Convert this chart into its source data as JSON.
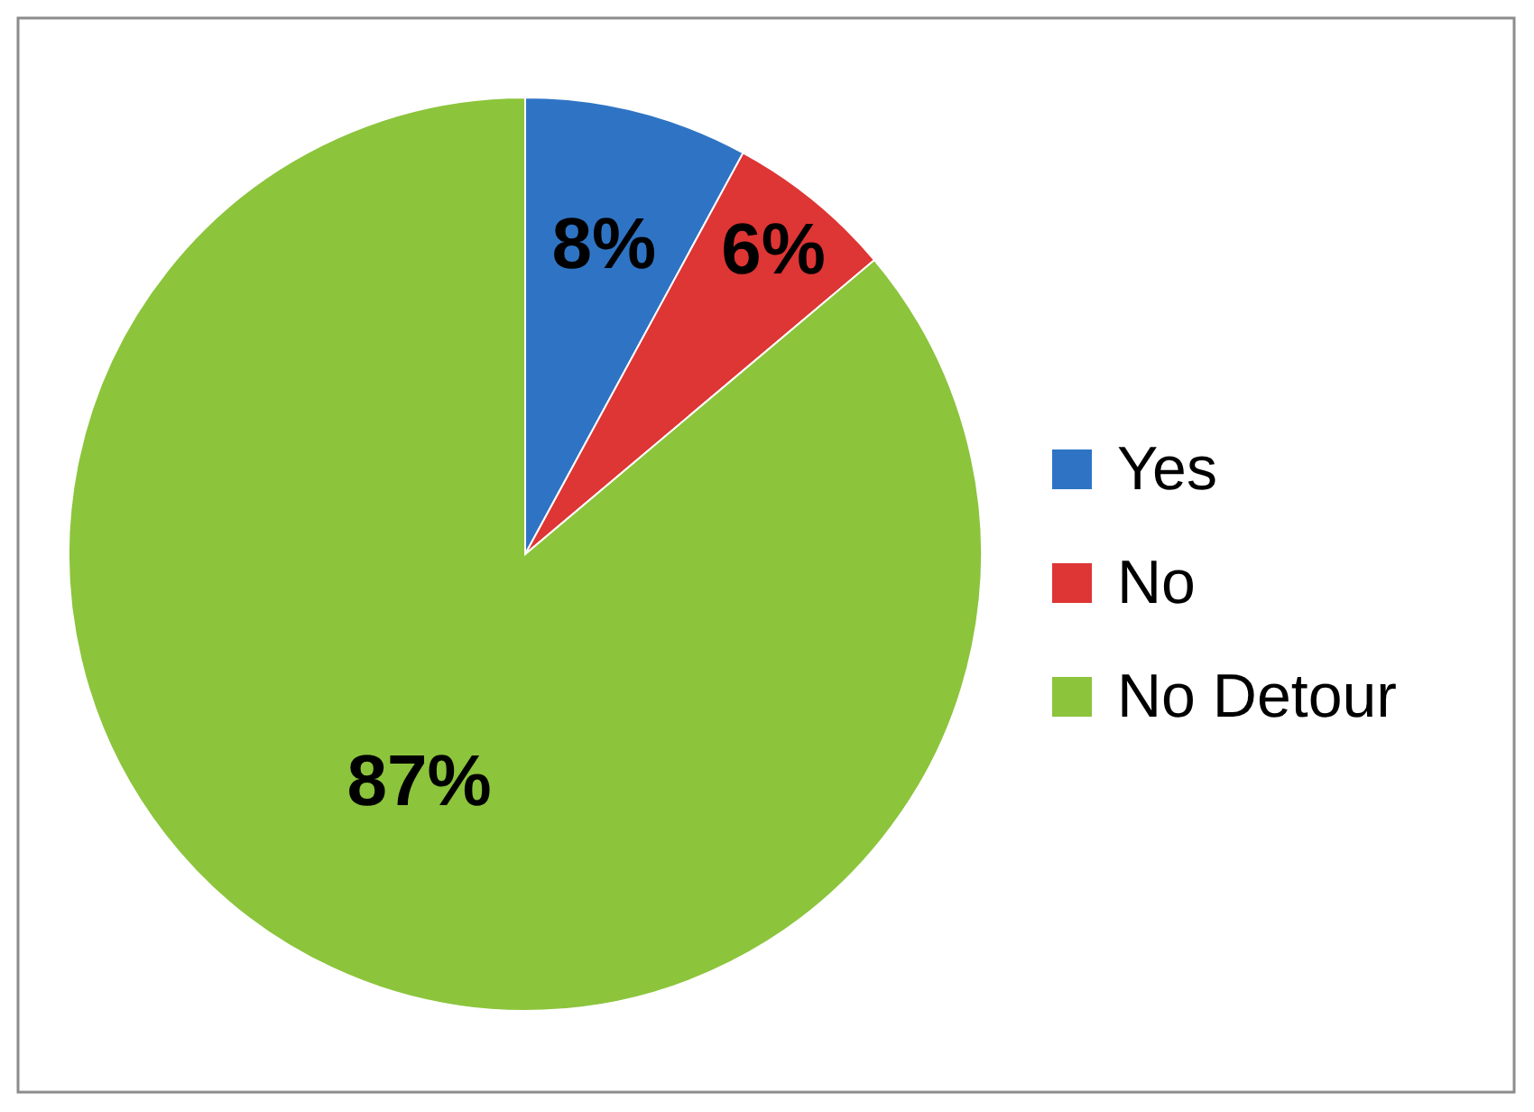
{
  "chart_data": {
    "type": "pie",
    "categories": [
      "Yes",
      "No",
      "No Detour"
    ],
    "values": [
      8,
      6,
      87
    ],
    "colors": [
      "#2f74c4",
      "#de3535",
      "#8cc43c"
    ],
    "value_labels": [
      "8%",
      "6%",
      "87%"
    ],
    "legend": "right"
  }
}
